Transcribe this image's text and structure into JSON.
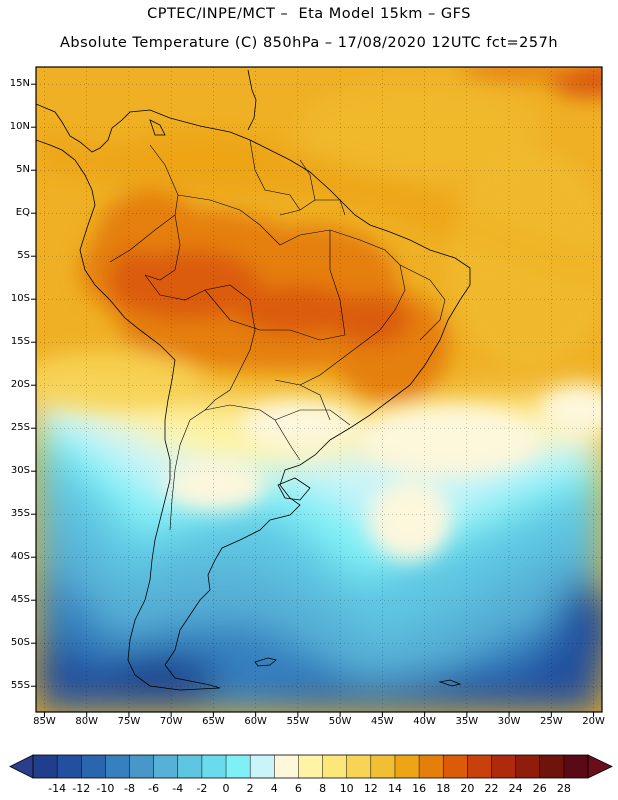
{
  "header": {
    "line1": "CPTEC/INPE/MCT –  Eta Model 15km – GFS",
    "line2": "Absolute Temperature (C) 850hPa – 17/08/2020 12UTC fct=257h"
  },
  "map": {
    "lon_range": [
      -86,
      -19
    ],
    "lat_range": [
      -58,
      17
    ],
    "lat_labels": [
      "15N",
      "10N",
      "5N",
      "EQ",
      "5S",
      "10S",
      "15S",
      "20S",
      "25S",
      "30S",
      "35S",
      "40S",
      "45S",
      "50S",
      "55S"
    ],
    "lat_values": [
      15,
      10,
      5,
      0,
      -5,
      -10,
      -15,
      -20,
      -25,
      -30,
      -35,
      -40,
      -45,
      -50,
      -55
    ],
    "lon_labels": [
      "85W",
      "80W",
      "75W",
      "70W",
      "65W",
      "60W",
      "55W",
      "50W",
      "45W",
      "40W",
      "35W",
      "30W",
      "25W",
      "20W"
    ],
    "lon_values": [
      -85,
      -80,
      -75,
      -70,
      -65,
      -60,
      -55,
      -50,
      -45,
      -40,
      -35,
      -30,
      -25,
      -20
    ]
  },
  "colorbar": {
    "labels": [
      "-14",
      "-12",
      "-10",
      "-8",
      "-6",
      "-4",
      "-2",
      "0",
      "2",
      "4",
      "6",
      "8",
      "10",
      "12",
      "14",
      "16",
      "18",
      "20",
      "22",
      "24",
      "26",
      "28"
    ],
    "levels": [
      -14,
      -12,
      -10,
      -8,
      -6,
      -4,
      -2,
      0,
      2,
      4,
      6,
      8,
      10,
      12,
      14,
      16,
      18,
      20,
      22,
      24,
      26,
      28
    ],
    "colors": [
      "#1f3f8c",
      "#23509e",
      "#2a66ae",
      "#3680bf",
      "#4798c9",
      "#57b0d6",
      "#5fc6e2",
      "#69dbec",
      "#7ff0f6",
      "#c9f4fa",
      "#fdf7dc",
      "#fff4a6",
      "#fce87a",
      "#f7d455",
      "#f1bf33",
      "#eda515",
      "#e57f0c",
      "#db5b08",
      "#c8400a",
      "#ad2a0c",
      "#8e1d0c",
      "#6e140b",
      "#5a0a14"
    ],
    "under_color": "#2b3e8e",
    "over_color": "#6a0f1a"
  }
}
